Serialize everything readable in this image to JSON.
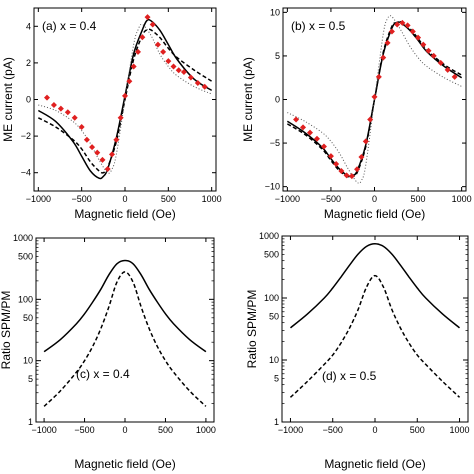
{
  "chart_data": [
    {
      "type": "scatter",
      "panel_label": "(a) x = 0.4",
      "xlabel": "Magnetic field (Oe)",
      "ylabel": "ME current (pA)",
      "xlim": [
        -1050,
        1050
      ],
      "ylim": [
        -5,
        5
      ],
      "xticks": [
        -1000,
        -500,
        0,
        500,
        1000
      ],
      "yticks": [
        -4,
        -2,
        0,
        2,
        4
      ],
      "scale": "linear",
      "grid": false,
      "series": [
        {
          "style": "solid",
          "color": "#000000",
          "x": [
            -1000,
            -800,
            -600,
            -500,
            -400,
            -300,
            -250,
            -200,
            -100,
            0,
            100,
            200,
            250,
            300,
            400,
            500,
            600,
            800,
            1000
          ],
          "y": [
            -0.6,
            -1.2,
            -2.3,
            -3.1,
            -3.9,
            -4.3,
            -4.2,
            -3.8,
            -2.1,
            0.2,
            2.5,
            3.8,
            4.3,
            4.3,
            3.8,
            3.0,
            2.2,
            1.1,
            0.5
          ]
        },
        {
          "style": "dashed",
          "color": "#000000",
          "x": [
            -1000,
            -800,
            -600,
            -500,
            -400,
            -300,
            -250,
            -200,
            -100,
            0,
            100,
            200,
            250,
            300,
            400,
            500,
            600,
            800,
            1000
          ],
          "y": [
            -1.0,
            -1.5,
            -2.2,
            -2.7,
            -3.4,
            -3.9,
            -4.0,
            -3.7,
            -2.3,
            0.0,
            2.2,
            3.5,
            3.8,
            3.8,
            3.4,
            2.8,
            2.3,
            1.6,
            1.0
          ]
        },
        {
          "style": "dotted",
          "color": "#555555",
          "x": [
            -1000,
            -800,
            -600,
            -500,
            -400,
            -300,
            -200,
            -150,
            -100,
            0,
            100,
            150,
            200,
            300,
            400,
            500,
            600,
            800,
            1000
          ],
          "y": [
            -0.3,
            -0.6,
            -1.2,
            -1.7,
            -2.4,
            -3.3,
            -4.0,
            -3.8,
            -3.0,
            0.0,
            3.0,
            3.8,
            4.1,
            3.5,
            2.5,
            1.8,
            1.3,
            0.7,
            0.3
          ]
        },
        {
          "style": "markers",
          "color": "#e02020",
          "x": [
            -900,
            -820,
            -740,
            -660,
            -580,
            -500,
            -440,
            -380,
            -320,
            -260,
            -200,
            -150,
            -100,
            -50,
            0,
            50,
            100,
            150,
            200,
            260,
            320,
            380,
            440,
            500,
            560,
            620,
            680,
            760,
            840,
            920
          ],
          "y": [
            0.1,
            -0.3,
            -0.5,
            -0.7,
            -1.0,
            -1.5,
            -2.2,
            -2.6,
            -2.9,
            -3.3,
            -3.8,
            -3.0,
            -2.2,
            -1.0,
            0.2,
            1.0,
            1.8,
            2.6,
            3.4,
            4.5,
            4.1,
            3.0,
            2.6,
            2.1,
            1.8,
            1.6,
            1.5,
            1.2,
            0.9,
            0.7
          ]
        }
      ]
    },
    {
      "type": "scatter",
      "panel_label": "(b) x = 0.5",
      "xlabel": "Magnetic field (Oe)",
      "ylabel": "ME current (pA)",
      "xlim": [
        -1050,
        1050
      ],
      "ylim": [
        -10.5,
        10.5
      ],
      "xticks": [
        -1000,
        -500,
        0,
        500,
        1000
      ],
      "yticks": [
        -10,
        -5,
        0,
        5,
        10
      ],
      "scale": "linear",
      "grid": false,
      "series": [
        {
          "style": "solid",
          "color": "#000000",
          "x": [
            -1000,
            -800,
            -600,
            -500,
            -400,
            -300,
            -250,
            -200,
            -100,
            0,
            100,
            200,
            250,
            300,
            400,
            500,
            600,
            800,
            1000
          ],
          "y": [
            -2.5,
            -3.8,
            -5.5,
            -6.8,
            -8.0,
            -8.8,
            -8.7,
            -8.2,
            -5.2,
            0.0,
            5.2,
            8.2,
            8.8,
            8.8,
            8.0,
            6.8,
            5.5,
            3.8,
            2.5
          ]
        },
        {
          "style": "dashed",
          "color": "#000000",
          "x": [
            -1000,
            -800,
            -600,
            -500,
            -400,
            -300,
            -250,
            -200,
            -100,
            0,
            100,
            200,
            250,
            300,
            400,
            500,
            600,
            800,
            1000
          ],
          "y": [
            -2.8,
            -4.0,
            -5.7,
            -7.0,
            -8.2,
            -8.9,
            -8.8,
            -8.4,
            -5.4,
            0.0,
            5.4,
            8.4,
            8.8,
            8.9,
            8.2,
            7.0,
            5.7,
            4.0,
            2.8
          ]
        },
        {
          "style": "dotted",
          "color": "#555555",
          "x": [
            -1000,
            -800,
            -600,
            -500,
            -400,
            -300,
            -200,
            -150,
            -100,
            0,
            100,
            150,
            200,
            300,
            400,
            500,
            600,
            800,
            1000
          ],
          "y": [
            -1.5,
            -2.5,
            -3.8,
            -4.8,
            -6.2,
            -8.0,
            -9.5,
            -9.3,
            -7.5,
            0.0,
            7.5,
            9.3,
            9.5,
            8.0,
            6.2,
            4.8,
            3.8,
            2.5,
            1.5
          ]
        },
        {
          "style": "markers",
          "color": "#e02020",
          "x": [
            -900,
            -820,
            -740,
            -660,
            -580,
            -500,
            -440,
            -380,
            -320,
            -260,
            -200,
            -150,
            -100,
            -50,
            0,
            50,
            100,
            150,
            200,
            260,
            320,
            380,
            440,
            500,
            560,
            620,
            680,
            760,
            840,
            920
          ],
          "y": [
            -2.3,
            -3.2,
            -3.8,
            -4.5,
            -5.4,
            -6.5,
            -7.4,
            -8.2,
            -8.7,
            -8.8,
            -8.0,
            -6.6,
            -4.8,
            -2.3,
            0.3,
            2.6,
            4.8,
            6.5,
            7.8,
            8.6,
            8.8,
            8.5,
            7.8,
            7.1,
            6.3,
            5.6,
            5.0,
            4.2,
            3.4,
            2.6
          ]
        }
      ]
    },
    {
      "type": "line",
      "panel_label": "(c) x = 0.4",
      "xlabel": "Magnetic field (Oe)",
      "ylabel": "Ratio SPM/PM",
      "xlim": [
        -1100,
        1100
      ],
      "ylim": [
        1,
        1000
      ],
      "scale": "log",
      "xticks": [
        -1000,
        -500,
        0,
        500,
        1000
      ],
      "yticks": [
        1,
        5,
        10,
        50,
        100,
        500,
        1000
      ],
      "yticklabels": [
        "1",
        "5",
        "10",
        "50",
        "100",
        "500",
        "1000"
      ],
      "grid": false,
      "series": [
        {
          "style": "solid",
          "color": "#000000",
          "x": [
            -1000,
            -800,
            -600,
            -500,
            -400,
            -300,
            -200,
            -100,
            0,
            100,
            200,
            300,
            400,
            500,
            600,
            800,
            1000
          ],
          "y": [
            14,
            22,
            40,
            58,
            90,
            145,
            250,
            380,
            430,
            380,
            250,
            145,
            90,
            58,
            40,
            22,
            14
          ]
        },
        {
          "style": "dashed",
          "color": "#000000",
          "x": [
            -1000,
            -800,
            -600,
            -500,
            -400,
            -300,
            -200,
            -100,
            0,
            100,
            200,
            300,
            400,
            500,
            600,
            800,
            1000
          ],
          "y": [
            1.8,
            3.2,
            6.5,
            10,
            17,
            33,
            75,
            190,
            280,
            190,
            75,
            33,
            17,
            10,
            6.5,
            3.2,
            1.8
          ]
        }
      ]
    },
    {
      "type": "line",
      "panel_label": "(d) x = 0.5",
      "xlabel": "Magnetic field (Oe)",
      "ylabel": "Ratio SPM/PM",
      "xlim": [
        -1100,
        1100
      ],
      "ylim": [
        1,
        1000
      ],
      "scale": "log",
      "xticks": [
        -1000,
        -500,
        0,
        500,
        1000
      ],
      "yticks": [
        1,
        5,
        10,
        50,
        100,
        500,
        1000
      ],
      "yticklabels": [
        "1",
        "5",
        "10",
        "50",
        "100",
        "500",
        "1000"
      ],
      "grid": false,
      "series": [
        {
          "style": "solid",
          "color": "#000000",
          "x": [
            -1000,
            -800,
            -600,
            -500,
            -400,
            -300,
            -200,
            -100,
            0,
            100,
            200,
            300,
            400,
            500,
            600,
            800,
            1000
          ],
          "y": [
            33,
            55,
            100,
            145,
            220,
            340,
            510,
            680,
            750,
            680,
            510,
            340,
            220,
            145,
            100,
            55,
            33
          ]
        },
        {
          "style": "dashed",
          "color": "#000000",
          "x": [
            -1000,
            -800,
            -600,
            -500,
            -400,
            -300,
            -200,
            -100,
            0,
            100,
            200,
            300,
            400,
            500,
            600,
            800,
            1000
          ],
          "y": [
            2.5,
            4.5,
            8.5,
            12,
            19,
            33,
            65,
            150,
            230,
            150,
            65,
            33,
            19,
            12,
            8.5,
            4.5,
            2.5
          ]
        }
      ]
    }
  ]
}
